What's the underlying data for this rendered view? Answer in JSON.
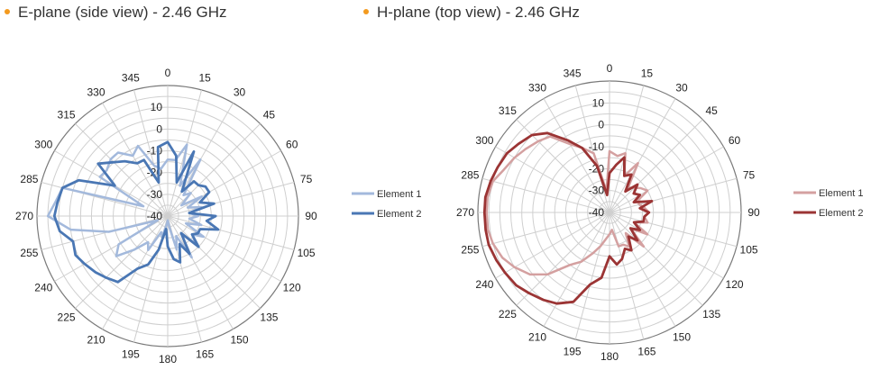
{
  "charts": [
    {
      "heading": "E-plane (side view) - 2.46 GHz"
    },
    {
      "heading": "H-plane (top view) - 2.46 GHz"
    }
  ],
  "colors": {
    "bullet": "#f39a1e"
  },
  "chart_data": [
    {
      "type": "polar-line",
      "title": "E-plane (side view) - 2.46 GHz",
      "angle_ticks": [
        0,
        15,
        30,
        45,
        60,
        75,
        90,
        105,
        120,
        135,
        150,
        165,
        180,
        195,
        210,
        225,
        240,
        255,
        270,
        285,
        300,
        315,
        330,
        345
      ],
      "radial_ticks": [
        -40,
        -30,
        -20,
        -10,
        0,
        10
      ],
      "rlim": [
        -40,
        20
      ],
      "grid": true,
      "legend": "right",
      "series": [
        {
          "name": "Element 1",
          "color": "#a3b9dc",
          "theta": [
            0,
            8,
            15,
            22,
            30,
            37,
            45,
            52,
            60,
            67,
            75,
            82,
            90,
            97,
            105,
            112,
            120,
            127,
            135,
            142,
            150,
            157,
            165,
            172,
            180,
            187,
            195,
            202,
            210,
            217,
            225,
            232,
            240,
            247,
            255,
            262,
            270,
            277,
            285,
            292,
            300,
            307,
            315,
            322,
            330,
            337,
            345,
            352
          ],
          "r": [
            -14,
            -14,
            -6,
            -25,
            -10,
            -28,
            -25,
            -32,
            -22,
            -30,
            -24,
            -30,
            -26,
            -30,
            -24,
            -31,
            -21,
            -26,
            -22,
            -30,
            -18,
            -30,
            -24,
            -35,
            -38,
            -36,
            -30,
            -32,
            -22,
            -25,
            -18,
            -10,
            -14,
            -35,
            -12,
            5,
            15,
            12,
            10,
            -28,
            -4,
            -5,
            -3,
            -3,
            -8,
            -5,
            -16,
            -18
          ]
        },
        {
          "name": "Element 2",
          "color": "#4a77b4",
          "theta": [
            0,
            8,
            15,
            22,
            30,
            37,
            45,
            52,
            60,
            67,
            75,
            82,
            90,
            97,
            105,
            112,
            120,
            127,
            135,
            142,
            150,
            157,
            165,
            172,
            180,
            187,
            195,
            202,
            210,
            217,
            225,
            232,
            240,
            247,
            255,
            262,
            270,
            277,
            285,
            292,
            300,
            307,
            315,
            322,
            330,
            337,
            345,
            352
          ],
          "r": [
            -6,
            -12,
            -24,
            -8,
            -27,
            -20,
            -20,
            -18,
            -18,
            -24,
            -18,
            -30,
            -18,
            -22,
            -16,
            -24,
            -24,
            -26,
            -20,
            -30,
            -20,
            -26,
            -18,
            -20,
            -26,
            -34,
            -24,
            -16,
            -12,
            -2,
            0,
            2,
            4,
            6,
            5,
            10,
            12,
            11,
            10,
            4,
            -12,
            0,
            -5,
            -8,
            -12,
            -12,
            -24,
            -8
          ]
        }
      ]
    },
    {
      "type": "polar-line",
      "title": "H-plane (top view) - 2.46 GHz",
      "angle_ticks": [
        0,
        15,
        30,
        45,
        60,
        75,
        90,
        105,
        120,
        135,
        150,
        165,
        180,
        195,
        210,
        225,
        240,
        255,
        270,
        285,
        300,
        315,
        330,
        345
      ],
      "radial_ticks": [
        -40,
        -30,
        -20,
        -10,
        0,
        10
      ],
      "rlim": [
        -40,
        20
      ],
      "grid": true,
      "legend": "right",
      "series": [
        {
          "name": "Element 1",
          "color": "#d4a0a0",
          "theta": [
            0,
            8,
            15,
            22,
            30,
            37,
            45,
            52,
            60,
            67,
            75,
            82,
            90,
            97,
            105,
            112,
            120,
            127,
            135,
            142,
            150,
            157,
            165,
            172,
            180,
            187,
            195,
            202,
            210,
            217,
            225,
            232,
            240,
            247,
            255,
            262,
            270,
            277,
            285,
            292,
            300,
            307,
            315,
            322,
            330,
            337,
            345,
            352
          ],
          "r": [
            -12,
            -14,
            -12,
            -22,
            -14,
            -26,
            -24,
            -22,
            -20,
            -26,
            -26,
            -24,
            -22,
            -24,
            -22,
            -28,
            -20,
            -28,
            -18,
            -28,
            -22,
            -24,
            -24,
            -32,
            -30,
            -28,
            -24,
            -20,
            -14,
            -10,
            0,
            6,
            10,
            13,
            15,
            16,
            16,
            16,
            15,
            12,
            10,
            8,
            6,
            4,
            -4,
            -8,
            -12,
            -30
          ]
        },
        {
          "name": "Element 2",
          "color": "#9b3434",
          "theta": [
            0,
            8,
            15,
            22,
            30,
            37,
            45,
            52,
            60,
            67,
            75,
            82,
            90,
            97,
            105,
            112,
            120,
            127,
            135,
            142,
            150,
            157,
            165,
            172,
            180,
            187,
            195,
            202,
            210,
            217,
            225,
            232,
            240,
            247,
            255,
            262,
            270,
            277,
            285,
            292,
            300,
            307,
            315,
            322,
            330,
            337,
            345,
            352
          ],
          "r": [
            -22,
            -18,
            -14,
            -22,
            -20,
            -28,
            -22,
            -26,
            -24,
            -28,
            -20,
            -26,
            -22,
            -24,
            -24,
            -28,
            -24,
            -28,
            -22,
            -26,
            -20,
            -22,
            -18,
            -16,
            -20,
            -10,
            -6,
            4,
            8,
            10,
            12,
            14,
            15,
            16,
            17,
            17,
            17,
            17,
            16,
            15,
            14,
            12,
            10,
            6,
            -2,
            -8,
            -18,
            -32
          ]
        }
      ]
    }
  ]
}
